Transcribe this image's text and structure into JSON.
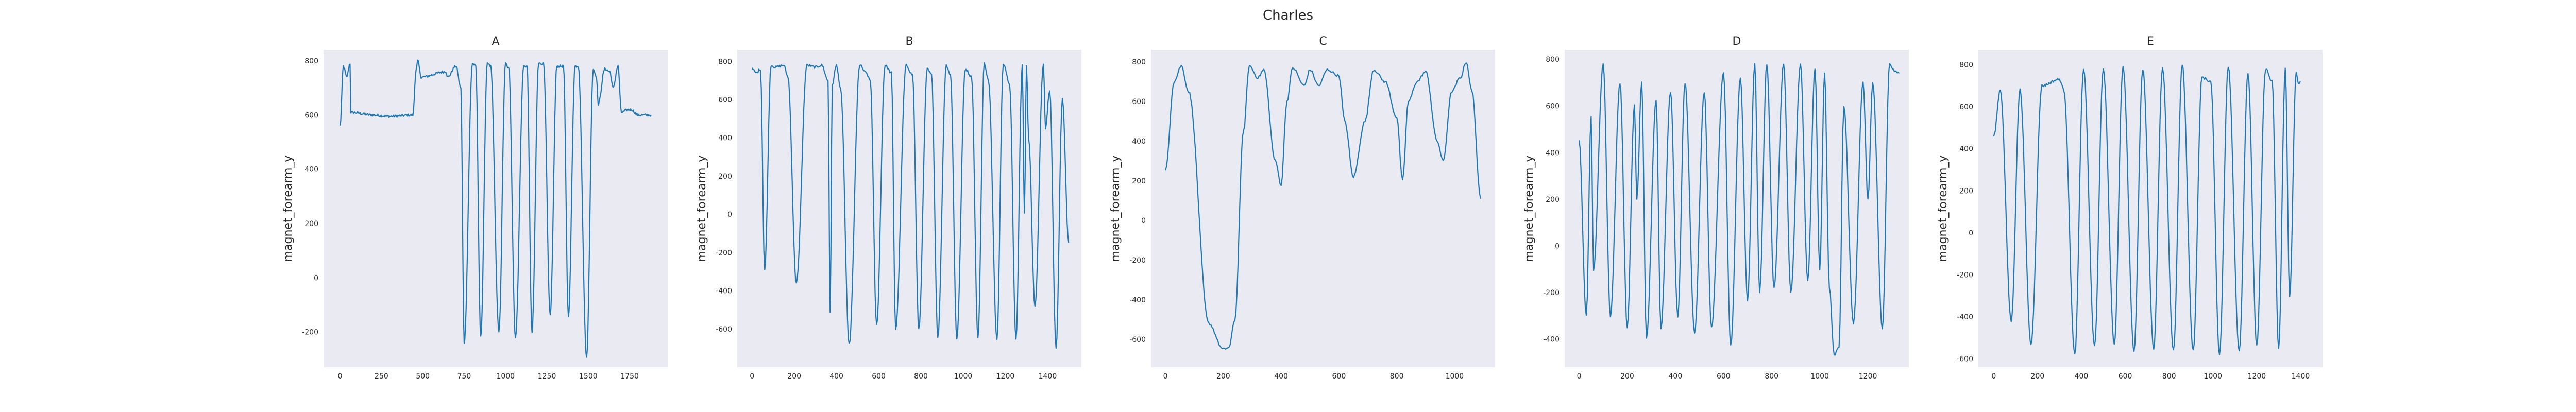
{
  "figure": {
    "title": "Charles"
  },
  "colors": {
    "plot_background": "#eaeaf2",
    "line": "#1f77b4",
    "text": "#262626"
  },
  "chart_data": [
    {
      "type": "line",
      "title": "A",
      "xlabel": "",
      "ylabel": "magnet_forearm_y",
      "xlim": [
        -100,
        1980
      ],
      "ylim": [
        -330,
        840
      ],
      "xticks": [
        0,
        250,
        500,
        750,
        1000,
        1250,
        1500,
        1750
      ],
      "yticks": [
        -200,
        0,
        200,
        400,
        600,
        800
      ],
      "grid": false,
      "keypoints": [
        [
          0,
          560
        ],
        [
          20,
          780
        ],
        [
          40,
          740
        ],
        [
          60,
          790
        ],
        [
          65,
          610
        ],
        [
          200,
          600
        ],
        [
          300,
          595
        ],
        [
          440,
          600
        ],
        [
          460,
          770
        ],
        [
          470,
          800
        ],
        [
          490,
          740
        ],
        [
          640,
          760
        ],
        [
          650,
          740
        ],
        [
          700,
          780
        ],
        [
          730,
          700
        ],
        [
          750,
          -240
        ],
        [
          800,
          790
        ],
        [
          820,
          780
        ],
        [
          850,
          -220
        ],
        [
          890,
          790
        ],
        [
          910,
          780
        ],
        [
          960,
          -200
        ],
        [
          1000,
          790
        ],
        [
          1020,
          770
        ],
        [
          1060,
          -220
        ],
        [
          1110,
          780
        ],
        [
          1130,
          780
        ],
        [
          1160,
          -200
        ],
        [
          1200,
          790
        ],
        [
          1230,
          790
        ],
        [
          1270,
          -140
        ],
        [
          1310,
          780
        ],
        [
          1350,
          780
        ],
        [
          1380,
          -140
        ],
        [
          1420,
          780
        ],
        [
          1440,
          780
        ],
        [
          1490,
          -290
        ],
        [
          1530,
          770
        ],
        [
          1550,
          740
        ],
        [
          1560,
          640
        ],
        [
          1600,
          770
        ],
        [
          1630,
          760
        ],
        [
          1650,
          700
        ],
        [
          1680,
          780
        ],
        [
          1700,
          610
        ],
        [
          1740,
          620
        ],
        [
          1760,
          620
        ],
        [
          1800,
          600
        ],
        [
          1880,
          600
        ]
      ]
    },
    {
      "type": "line",
      "title": "B",
      "xlabel": "",
      "ylabel": "magnet_forearm_y",
      "xlim": [
        -70,
        1560
      ],
      "ylim": [
        -800,
        860
      ],
      "xticks": [
        0,
        200,
        400,
        600,
        800,
        1000,
        1200,
        1400
      ],
      "yticks": [
        -600,
        -400,
        -200,
        0,
        200,
        400,
        600,
        800
      ],
      "grid": false,
      "keypoints": [
        [
          0,
          760
        ],
        [
          20,
          740
        ],
        [
          40,
          760
        ],
        [
          60,
          -290
        ],
        [
          90,
          780
        ],
        [
          110,
          770
        ],
        [
          150,
          780
        ],
        [
          170,
          720
        ],
        [
          210,
          -360
        ],
        [
          260,
          780
        ],
        [
          300,
          770
        ],
        [
          330,
          780
        ],
        [
          360,
          700
        ],
        [
          370,
          -510
        ],
        [
          380,
          680
        ],
        [
          400,
          780
        ],
        [
          420,
          650
        ],
        [
          460,
          -680
        ],
        [
          510,
          780
        ],
        [
          540,
          740
        ],
        [
          560,
          700
        ],
        [
          590,
          -580
        ],
        [
          630,
          780
        ],
        [
          660,
          740
        ],
        [
          680,
          -600
        ],
        [
          730,
          780
        ],
        [
          760,
          730
        ],
        [
          790,
          -600
        ],
        [
          830,
          760
        ],
        [
          850,
          730
        ],
        [
          880,
          -640
        ],
        [
          920,
          780
        ],
        [
          940,
          730
        ],
        [
          970,
          -650
        ],
        [
          1010,
          760
        ],
        [
          1040,
          720
        ],
        [
          1070,
          -650
        ],
        [
          1100,
          790
        ],
        [
          1120,
          700
        ],
        [
          1160,
          -650
        ],
        [
          1190,
          790
        ],
        [
          1220,
          680
        ],
        [
          1250,
          -650
        ],
        [
          1280,
          780
        ],
        [
          1290,
          0
        ],
        [
          1300,
          780
        ],
        [
          1310,
          400
        ],
        [
          1340,
          -480
        ],
        [
          1380,
          790
        ],
        [
          1390,
          450
        ],
        [
          1410,
          650
        ],
        [
          1440,
          -700
        ],
        [
          1470,
          600
        ],
        [
          1500,
          -150
        ]
      ]
    },
    {
      "type": "line",
      "title": "C",
      "xlabel": "",
      "ylabel": "magnet_forearm_y",
      "xlim": [
        -50,
        1140
      ],
      "ylim": [
        -740,
        860
      ],
      "xticks": [
        0,
        200,
        400,
        600,
        800,
        1000
      ],
      "yticks": [
        -600,
        -400,
        -200,
        0,
        200,
        400,
        600,
        800
      ],
      "grid": false,
      "keypoints": [
        [
          0,
          250
        ],
        [
          30,
          700
        ],
        [
          55,
          780
        ],
        [
          80,
          650
        ],
        [
          150,
          -520
        ],
        [
          200,
          -650
        ],
        [
          220,
          -640
        ],
        [
          240,
          -500
        ],
        [
          270,
          450
        ],
        [
          290,
          780
        ],
        [
          320,
          720
        ],
        [
          340,
          760
        ],
        [
          380,
          300
        ],
        [
          400,
          180
        ],
        [
          420,
          600
        ],
        [
          440,
          770
        ],
        [
          480,
          680
        ],
        [
          500,
          760
        ],
        [
          530,
          680
        ],
        [
          560,
          760
        ],
        [
          600,
          730
        ],
        [
          620,
          500
        ],
        [
          650,
          220
        ],
        [
          690,
          500
        ],
        [
          720,
          760
        ],
        [
          760,
          700
        ],
        [
          800,
          520
        ],
        [
          820,
          200
        ],
        [
          840,
          600
        ],
        [
          870,
          700
        ],
        [
          900,
          750
        ],
        [
          940,
          400
        ],
        [
          960,
          300
        ],
        [
          990,
          650
        ],
        [
          1020,
          720
        ],
        [
          1040,
          800
        ],
        [
          1060,
          650
        ],
        [
          1090,
          110
        ]
      ]
    },
    {
      "type": "line",
      "title": "D",
      "xlabel": "",
      "ylabel": "magnet_forearm_y",
      "xlim": [
        -60,
        1370
      ],
      "ylim": [
        -520,
        840
      ],
      "xticks": [
        0,
        200,
        400,
        600,
        800,
        1000,
        1200
      ],
      "yticks": [
        -400,
        -200,
        0,
        200,
        400,
        600,
        800
      ],
      "grid": false,
      "keypoints": [
        [
          0,
          450
        ],
        [
          30,
          -300
        ],
        [
          50,
          550
        ],
        [
          60,
          -100
        ],
        [
          100,
          780
        ],
        [
          130,
          -300
        ],
        [
          170,
          700
        ],
        [
          200,
          -350
        ],
        [
          230,
          600
        ],
        [
          240,
          200
        ],
        [
          260,
          700
        ],
        [
          280,
          -400
        ],
        [
          320,
          620
        ],
        [
          340,
          -350
        ],
        [
          380,
          660
        ],
        [
          410,
          -300
        ],
        [
          440,
          700
        ],
        [
          480,
          -370
        ],
        [
          520,
          660
        ],
        [
          550,
          -350
        ],
        [
          600,
          740
        ],
        [
          630,
          -430
        ],
        [
          670,
          720
        ],
        [
          700,
          -230
        ],
        [
          730,
          780
        ],
        [
          750,
          -200
        ],
        [
          780,
          780
        ],
        [
          810,
          -180
        ],
        [
          850,
          780
        ],
        [
          880,
          -200
        ],
        [
          920,
          780
        ],
        [
          950,
          -150
        ],
        [
          980,
          760
        ],
        [
          1000,
          -100
        ],
        [
          1020,
          740
        ],
        [
          1040,
          -180
        ],
        [
          1060,
          -470
        ],
        [
          1080,
          -430
        ],
        [
          1100,
          600
        ],
        [
          1140,
          -330
        ],
        [
          1180,
          700
        ],
        [
          1200,
          200
        ],
        [
          1220,
          700
        ],
        [
          1260,
          -350
        ],
        [
          1290,
          780
        ],
        [
          1310,
          750
        ],
        [
          1330,
          740
        ]
      ]
    },
    {
      "type": "line",
      "title": "E",
      "xlabel": "",
      "ylabel": "magnet_forearm_y",
      "xlim": [
        -70,
        1500
      ],
      "ylim": [
        -640,
        870
      ],
      "xticks": [
        0,
        200,
        400,
        600,
        800,
        1000,
        1200,
        1400
      ],
      "yticks": [
        -600,
        -400,
        -200,
        0,
        200,
        400,
        600,
        800
      ],
      "grid": false,
      "keypoints": [
        [
          0,
          460
        ],
        [
          30,
          680
        ],
        [
          80,
          -420
        ],
        [
          120,
          680
        ],
        [
          170,
          -530
        ],
        [
          220,
          700
        ],
        [
          300,
          730
        ],
        [
          320,
          680
        ],
        [
          370,
          -580
        ],
        [
          410,
          780
        ],
        [
          460,
          -540
        ],
        [
          500,
          780
        ],
        [
          550,
          -530
        ],
        [
          590,
          790
        ],
        [
          640,
          -560
        ],
        [
          680,
          780
        ],
        [
          730,
          -550
        ],
        [
          770,
          780
        ],
        [
          820,
          -560
        ],
        [
          860,
          800
        ],
        [
          910,
          -560
        ],
        [
          950,
          740
        ],
        [
          990,
          720
        ],
        [
          1030,
          -580
        ],
        [
          1070,
          790
        ],
        [
          1120,
          -560
        ],
        [
          1160,
          760
        ],
        [
          1200,
          -540
        ],
        [
          1240,
          780
        ],
        [
          1270,
          720
        ],
        [
          1300,
          -550
        ],
        [
          1330,
          780
        ],
        [
          1350,
          -300
        ],
        [
          1380,
          760
        ],
        [
          1390,
          710
        ],
        [
          1400,
          720
        ]
      ]
    }
  ]
}
